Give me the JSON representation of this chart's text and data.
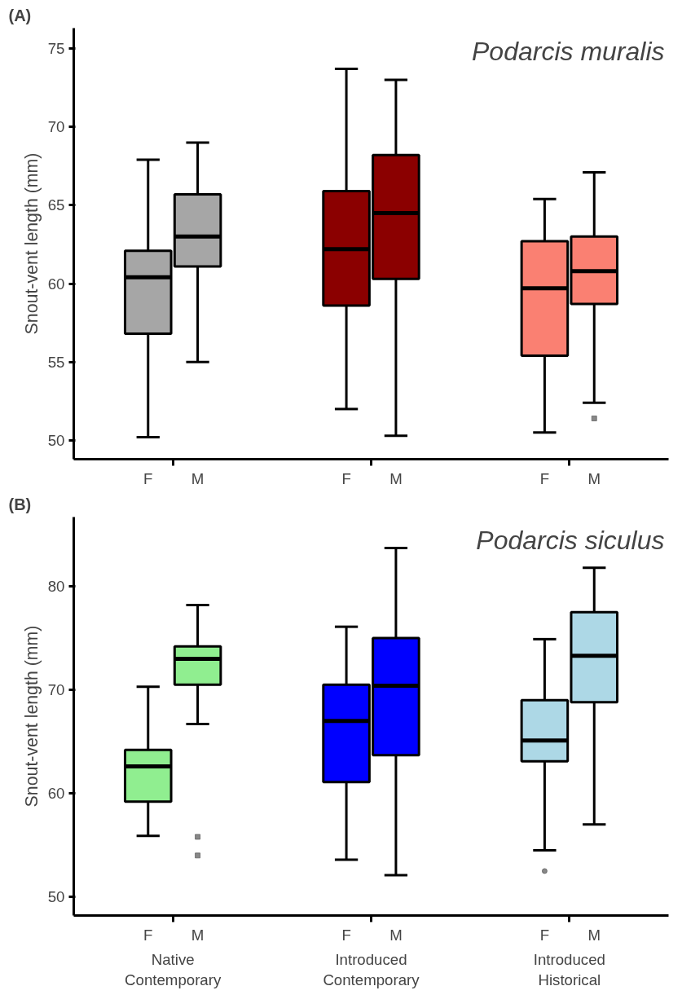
{
  "chart_data": [
    {
      "type": "box",
      "title": "Podarcis muralis",
      "ylabel": "Snout-vent length (mm)",
      "annotations": [
        "(A)"
      ],
      "categories": [
        null,
        "F",
        "M",
        null,
        null,
        "F",
        "M",
        null,
        null,
        "F",
        "M",
        null
      ],
      "colors": [
        null,
        "#a6a6a6",
        "#a6a6a6",
        null,
        null,
        "#8b0000",
        "#8b0000",
        null,
        null,
        "#fa8072",
        "#fa8072",
        null
      ],
      "boxes": [
        null,
        {
          "low": 50.2,
          "q1": 56.8,
          "median": 60.4,
          "q3": 62.1,
          "high": 67.9
        },
        {
          "low": 55.0,
          "q1": 61.1,
          "median": 63.0,
          "q3": 65.7,
          "high": 69.0
        },
        null,
        null,
        {
          "low": 52.0,
          "q1": 58.6,
          "median": 62.2,
          "q3": 65.9,
          "high": 73.7
        },
        {
          "low": 50.3,
          "q1": 60.3,
          "median": 64.5,
          "q3": 68.2,
          "high": 73.0
        },
        null,
        null,
        {
          "low": 50.5,
          "q1": 55.4,
          "median": 59.7,
          "q3": 62.7,
          "high": 65.4
        },
        {
          "low": 52.4,
          "q1": 58.7,
          "median": 60.8,
          "q3": 63.0,
          "high": 67.1,
          "outliers": [
            51.4
          ]
        },
        null
      ],
      "ylim": [
        48.8,
        76.3
      ],
      "yticks": [
        50,
        55,
        60,
        65,
        70,
        75
      ],
      "grid": false
    },
    {
      "type": "box",
      "title": "Podarcis siculus",
      "ylabel": "Snout-vent length (mm)",
      "annotations": [
        "(B)",
        "Native\nContemporary",
        "Introduced\nContemporary",
        "Introduced\nHistorical"
      ],
      "categories": [
        null,
        "F",
        "M",
        null,
        null,
        "F",
        "M",
        null,
        null,
        "F",
        "M",
        null
      ],
      "colors": [
        null,
        "#90ee90",
        "#90ee90",
        null,
        null,
        "#0000ff",
        "#0000ff",
        null,
        null,
        "#add8e6",
        "#add8e6",
        null
      ],
      "boxes": [
        null,
        {
          "low": 55.9,
          "q1": 59.2,
          "median": 62.6,
          "q3": 64.2,
          "high": 70.3
        },
        {
          "low": 66.7,
          "q1": 70.5,
          "median": 73.0,
          "q3": 74.2,
          "high": 78.2,
          "outliers": [
            55.8,
            54.0
          ]
        },
        null,
        null,
        {
          "low": 53.6,
          "q1": 61.1,
          "median": 67.0,
          "q3": 70.5,
          "high": 76.1
        },
        {
          "low": 52.1,
          "q1": 63.7,
          "median": 70.4,
          "q3": 75.0,
          "high": 83.7
        },
        null,
        null,
        {
          "low": 54.5,
          "q1": 63.1,
          "median": 65.1,
          "q3": 69.0,
          "high": 74.9,
          "outliers": [
            52.5
          ]
        },
        {
          "low": 57.0,
          "q1": 68.8,
          "median": 73.3,
          "q3": 77.5,
          "high": 81.8
        },
        null
      ],
      "ylim": [
        48.2,
        86.7
      ],
      "yticks": [
        50,
        60,
        70,
        80
      ],
      "grid": false
    }
  ]
}
